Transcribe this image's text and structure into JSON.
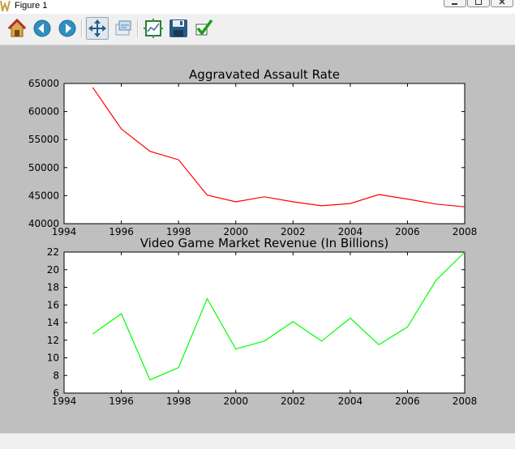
{
  "window": {
    "title": "Figure 1",
    "controls": [
      "minimize-icon",
      "maximize-icon",
      "close-icon"
    ]
  },
  "toolbar": {
    "buttons": [
      {
        "name": "home",
        "icon": "home-icon"
      },
      {
        "name": "back",
        "icon": "back-arrow-icon"
      },
      {
        "name": "forward",
        "icon": "forward-arrow-icon"
      },
      {
        "name": "pan",
        "icon": "pan-arrows-icon",
        "active": true
      },
      {
        "name": "zoom",
        "icon": "zoom-rect-icon"
      },
      {
        "name": "subplots",
        "icon": "subplots-icon"
      },
      {
        "name": "save",
        "icon": "floppy-disk-icon"
      },
      {
        "name": "edit",
        "icon": "checkmark-icon"
      }
    ]
  },
  "colors": {
    "figure_bg": "#bfbfbf",
    "series1": "#ff0000",
    "series2": "#00ff00"
  },
  "chart_data": [
    {
      "type": "line",
      "title": "Aggravated Assault Rate",
      "xlabel": "",
      "ylabel": "",
      "xlim": [
        1994,
        2008
      ],
      "ylim": [
        40000,
        65000
      ],
      "xticks": [
        1994,
        1996,
        1998,
        2000,
        2002,
        2004,
        2006,
        2008
      ],
      "yticks": [
        40000,
        45000,
        50000,
        55000,
        60000,
        65000
      ],
      "grid": false,
      "x": [
        1995,
        1996,
        1997,
        1998,
        1999,
        2000,
        2001,
        2002,
        2003,
        2004,
        2005,
        2006,
        2007,
        2008
      ],
      "series": [
        {
          "color": "#ff0000",
          "values": [
            64300,
            56900,
            52900,
            51400,
            45100,
            43900,
            44800,
            43900,
            43200,
            43600,
            45200,
            44400,
            43500,
            43000
          ]
        }
      ]
    },
    {
      "type": "line",
      "title": "Video Game Market Revenue (In Billions)",
      "xlabel": "",
      "ylabel": "",
      "xlim": [
        1994,
        2008
      ],
      "ylim": [
        6,
        22
      ],
      "xticks": [
        1994,
        1996,
        1998,
        2000,
        2002,
        2004,
        2006,
        2008
      ],
      "yticks": [
        6,
        8,
        10,
        12,
        14,
        16,
        18,
        20,
        22
      ],
      "grid": false,
      "x": [
        1995,
        1996,
        1997,
        1998,
        1999,
        2000,
        2001,
        2002,
        2003,
        2004,
        2005,
        2006,
        2007,
        2008
      ],
      "series": [
        {
          "color": "#00ff00",
          "values": [
            12.7,
            15.0,
            7.5,
            8.9,
            16.7,
            11.0,
            11.9,
            14.1,
            11.9,
            14.5,
            11.5,
            13.5,
            18.8,
            22.0
          ]
        }
      ]
    }
  ]
}
